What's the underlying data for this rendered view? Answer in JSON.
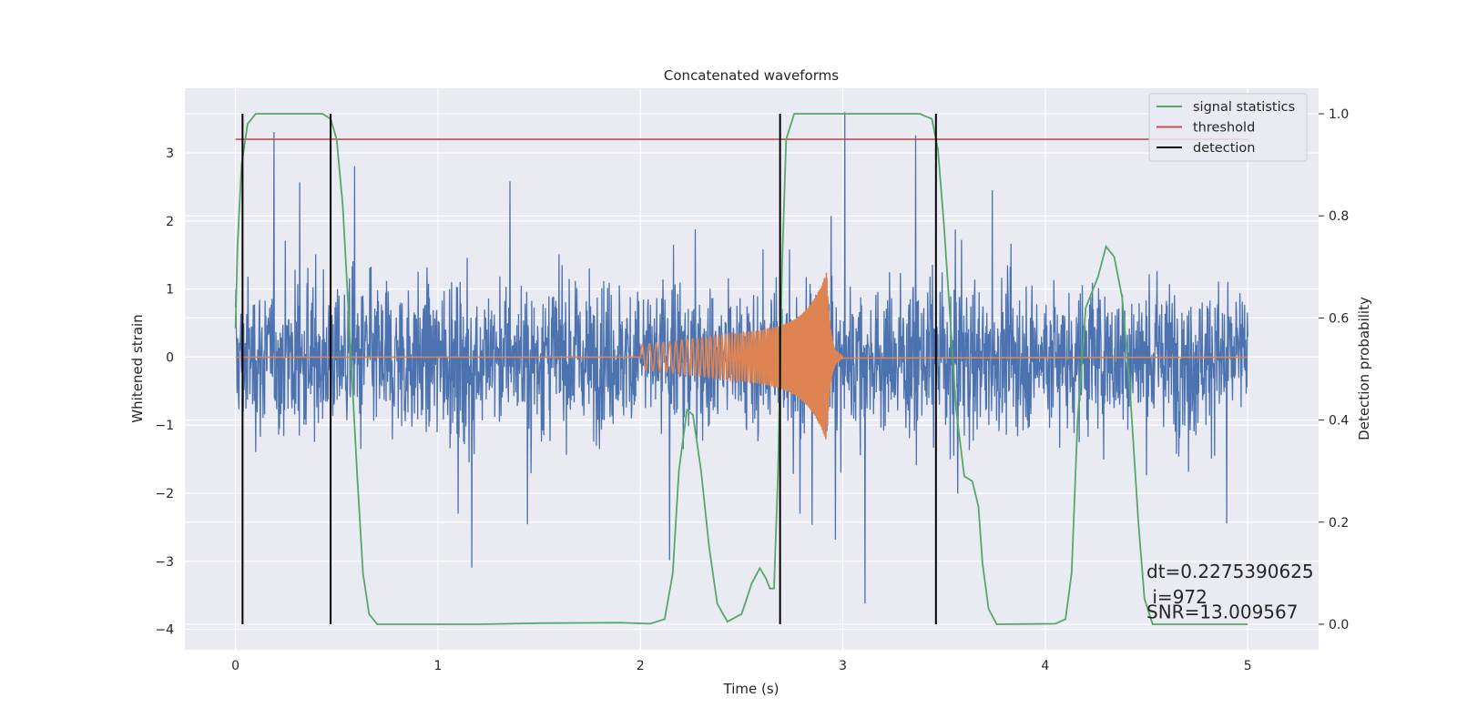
{
  "chart_data": {
    "type": "line",
    "title": "Concatenated waveforms",
    "xlabel": "Time (s)",
    "ylabel": "Whitened strain",
    "y2label": "Detection probability",
    "xlim": [
      -0.25,
      5.35
    ],
    "ylim": [
      -4.3,
      3.95
    ],
    "y2lim": [
      -0.05,
      1.05
    ],
    "xticks": [
      0,
      1,
      2,
      3,
      4,
      5
    ],
    "yticks": [
      -4,
      -3,
      -2,
      -1,
      0,
      1,
      2,
      3
    ],
    "y2ticks": [
      0.0,
      0.2,
      0.4,
      0.6,
      0.8,
      1.0
    ],
    "grid": true,
    "legend_position": "upper right",
    "colors": {
      "strain": "#4c72b0",
      "template": "#dd8452",
      "signal_statistics": "#55a868",
      "threshold": "#c44e52",
      "detection": "#000000",
      "plot_background": "#eaeaf2",
      "grid": "#ffffff"
    },
    "series": [
      {
        "name": "",
        "description": "whitened noisy strain",
        "axis": "left",
        "color": "#4c72b0",
        "x_range": [
          0,
          5
        ],
        "envelope_max": 3.6,
        "envelope_min": -3.9
      },
      {
        "name": "",
        "description": "injected chirp waveform",
        "axis": "left",
        "color": "#dd8452",
        "x_range": [
          2.0,
          3.0
        ],
        "peak_time": 2.92,
        "peak_amplitude": 1.25
      },
      {
        "name": "signal statistics",
        "axis": "right",
        "color": "#55a868",
        "points": [
          [
            0.0,
            0.58
          ],
          [
            0.01,
            0.74
          ],
          [
            0.03,
            0.9
          ],
          [
            0.06,
            0.98
          ],
          [
            0.1,
            1.0
          ],
          [
            0.43,
            1.0
          ],
          [
            0.47,
            0.99
          ],
          [
            0.5,
            0.95
          ],
          [
            0.53,
            0.82
          ],
          [
            0.56,
            0.6
          ],
          [
            0.6,
            0.3
          ],
          [
            0.63,
            0.1
          ],
          [
            0.66,
            0.02
          ],
          [
            0.7,
            0.0
          ],
          [
            1.2,
            0.0
          ],
          [
            1.5,
            0.002
          ],
          [
            1.9,
            0.003
          ],
          [
            2.05,
            0.001
          ],
          [
            2.12,
            0.01
          ],
          [
            2.16,
            0.1
          ],
          [
            2.19,
            0.3
          ],
          [
            2.23,
            0.42
          ],
          [
            2.26,
            0.41
          ],
          [
            2.3,
            0.3
          ],
          [
            2.34,
            0.15
          ],
          [
            2.38,
            0.04
          ],
          [
            2.43,
            0.005
          ],
          [
            2.5,
            0.02
          ],
          [
            2.55,
            0.08
          ],
          [
            2.59,
            0.11
          ],
          [
            2.62,
            0.09
          ],
          [
            2.64,
            0.07
          ],
          [
            2.66,
            0.07
          ],
          [
            2.68,
            0.3
          ],
          [
            2.7,
            0.7
          ],
          [
            2.72,
            0.95
          ],
          [
            2.76,
            1.0
          ],
          [
            3.38,
            1.0
          ],
          [
            3.44,
            0.99
          ],
          [
            3.47,
            0.93
          ],
          [
            3.5,
            0.78
          ],
          [
            3.53,
            0.6
          ],
          [
            3.56,
            0.42
          ],
          [
            3.6,
            0.29
          ],
          [
            3.64,
            0.28
          ],
          [
            3.67,
            0.23
          ],
          [
            3.69,
            0.12
          ],
          [
            3.72,
            0.03
          ],
          [
            3.76,
            0.0
          ],
          [
            4.05,
            0.001
          ],
          [
            4.1,
            0.01
          ],
          [
            4.13,
            0.1
          ],
          [
            4.16,
            0.4
          ],
          [
            4.2,
            0.62
          ],
          [
            4.26,
            0.68
          ],
          [
            4.3,
            0.74
          ],
          [
            4.34,
            0.72
          ],
          [
            4.38,
            0.64
          ],
          [
            4.42,
            0.45
          ],
          [
            4.46,
            0.2
          ],
          [
            4.49,
            0.05
          ],
          [
            4.53,
            0.0
          ],
          [
            5.0,
            0.0
          ]
        ]
      },
      {
        "name": "threshold",
        "axis": "right",
        "color": "#c44e52",
        "value": 0.95,
        "x_range": [
          0,
          5
        ]
      },
      {
        "name": "detection",
        "axis": "right",
        "color": "#000000",
        "x": [
          0.035,
          0.47,
          2.69,
          3.46
        ],
        "y_range": [
          0,
          1
        ]
      }
    ],
    "annotations": [
      {
        "text": "dt=0.2275390625",
        "x": 4.5,
        "y_right": 0.103
      },
      {
        "text": " i=972",
        "x": 4.5,
        "y_right": 0.053
      },
      {
        "text": "SNR=13.009567",
        "x": 4.5,
        "y_right": 0.024
      }
    ]
  }
}
